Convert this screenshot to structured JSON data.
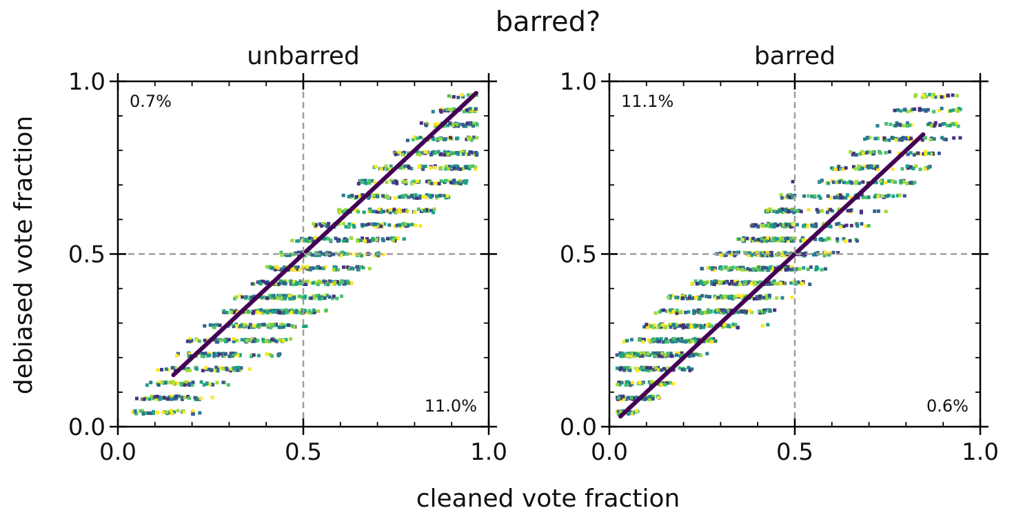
{
  "figure": {
    "suptitle": "barred?",
    "xlabel": "cleaned vote fraction",
    "ylabel": "debiased vote fraction"
  },
  "chart_data": [
    {
      "type": "scatter",
      "title": "unbarred",
      "xlim": [
        0.0,
        1.0
      ],
      "ylim": [
        0.0,
        1.0
      ],
      "x_ticks": [
        "0.0",
        "0.5",
        "1.0"
      ],
      "y_ticks": [
        "0.0",
        "0.5",
        "1.0"
      ],
      "reference_lines": {
        "x": 0.5,
        "y": 0.5,
        "style": "dashed",
        "color": "#9e9e9e"
      },
      "annotations": [
        {
          "text": "0.7%",
          "position": "top-left"
        },
        {
          "text": "11.0%",
          "position": "bottom-right"
        }
      ],
      "identity_line": {
        "from": 0.15,
        "to": 0.97
      },
      "colormap": "viridis",
      "point_clouds": [
        {
          "x_range": [
            0.05,
            0.55
          ],
          "offset": [
            -0.12,
            0.06
          ],
          "count": 350
        },
        {
          "x_range": [
            0.4,
            0.97
          ],
          "offset": [
            -0.22,
            0.05
          ],
          "count": 900
        },
        {
          "x_range": [
            0.04,
            0.45
          ],
          "offset": [
            -0.18,
            0.0
          ],
          "count": 220
        }
      ]
    },
    {
      "type": "scatter",
      "title": "barred",
      "xlim": [
        0.0,
        1.0
      ],
      "ylim": [
        0.0,
        1.0
      ],
      "x_ticks": [
        "0.0",
        "0.5",
        "1.0"
      ],
      "y_ticks": [
        "0.0",
        "0.5",
        "1.0"
      ],
      "reference_lines": {
        "x": 0.5,
        "y": 0.5,
        "style": "dashed",
        "color": "#9e9e9e"
      },
      "annotations": [
        {
          "text": "11.1%",
          "position": "top-left"
        },
        {
          "text": "0.6%",
          "position": "bottom-right"
        }
      ],
      "identity_line": {
        "from": 0.03,
        "to": 0.85
      },
      "colormap": "viridis",
      "point_clouds": [
        {
          "x_range": [
            0.02,
            0.5
          ],
          "offset": [
            -0.04,
            0.2
          ],
          "count": 1000
        },
        {
          "x_range": [
            0.4,
            0.95
          ],
          "offset": [
            -0.12,
            0.14
          ],
          "count": 550
        }
      ]
    }
  ]
}
